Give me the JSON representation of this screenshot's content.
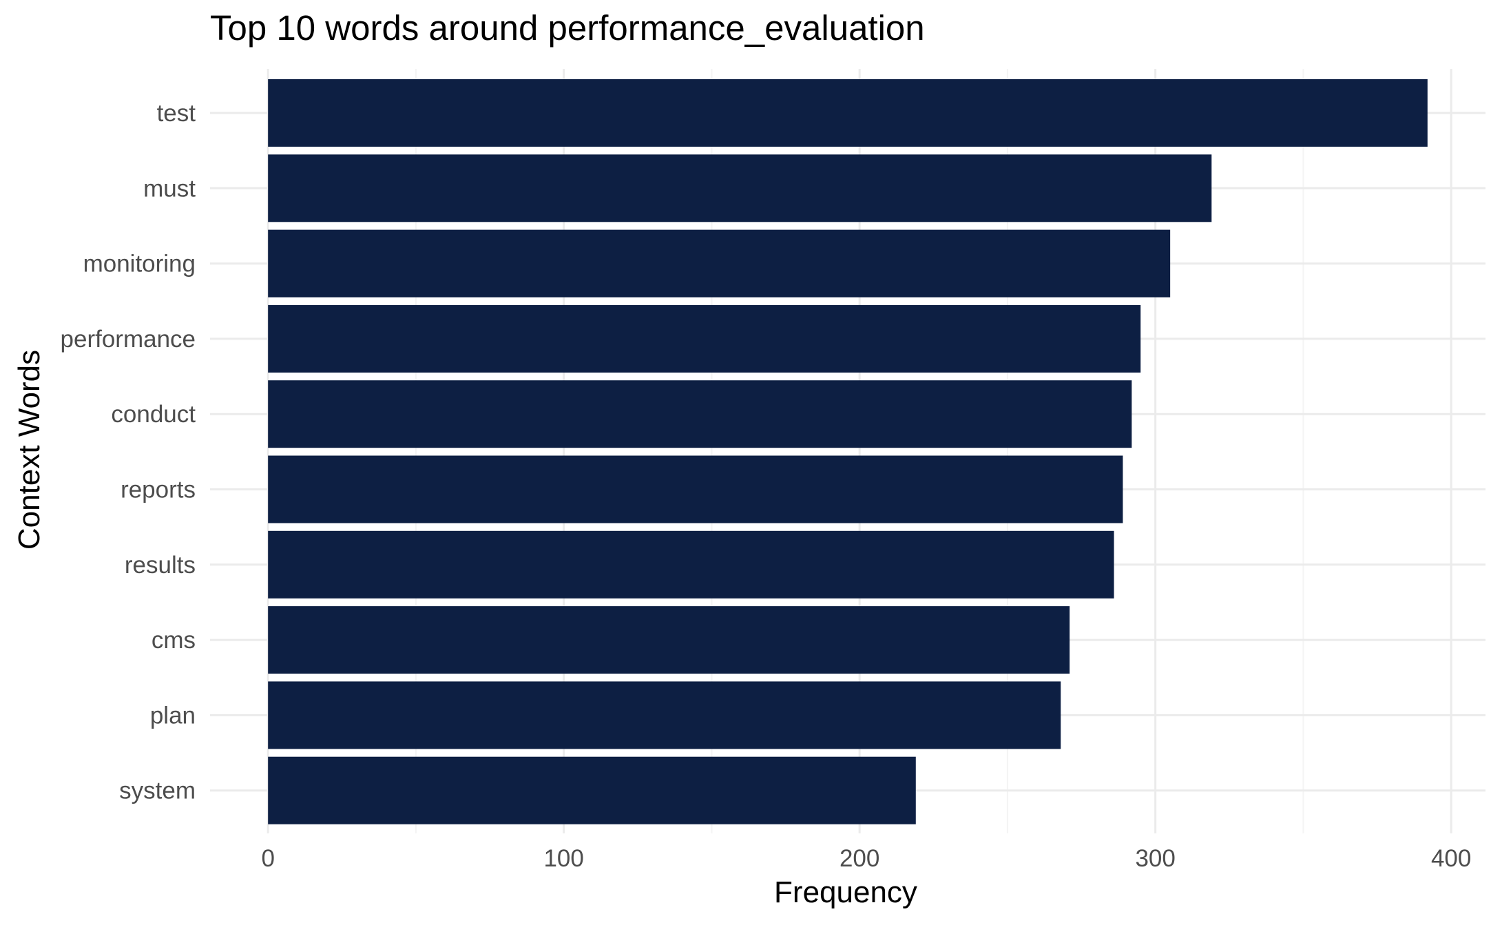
{
  "chart_data": {
    "type": "bar",
    "orientation": "horizontal",
    "title": "Top 10 words around performance_evaluation",
    "xlabel": "Frequency",
    "ylabel": "Context Words",
    "categories": [
      "test",
      "must",
      "monitoring",
      "performance",
      "conduct",
      "reports",
      "results",
      "cms",
      "plan",
      "system"
    ],
    "values": [
      392,
      319,
      305,
      295,
      292,
      289,
      286,
      271,
      268,
      219
    ],
    "xlim": [
      -19.6,
      411.6
    ],
    "x_ticks": [
      0,
      100,
      200,
      300,
      400
    ],
    "x_tick_labels": [
      "0",
      "100",
      "200",
      "300",
      "400"
    ],
    "grid": true,
    "legend": "none",
    "colors": {
      "bar": "#0d1f43",
      "grid_major": "#ebebeb",
      "grid_minor": "#f4f4f4",
      "tick_text": "#4d4d4d",
      "title_text": "#000000"
    }
  }
}
